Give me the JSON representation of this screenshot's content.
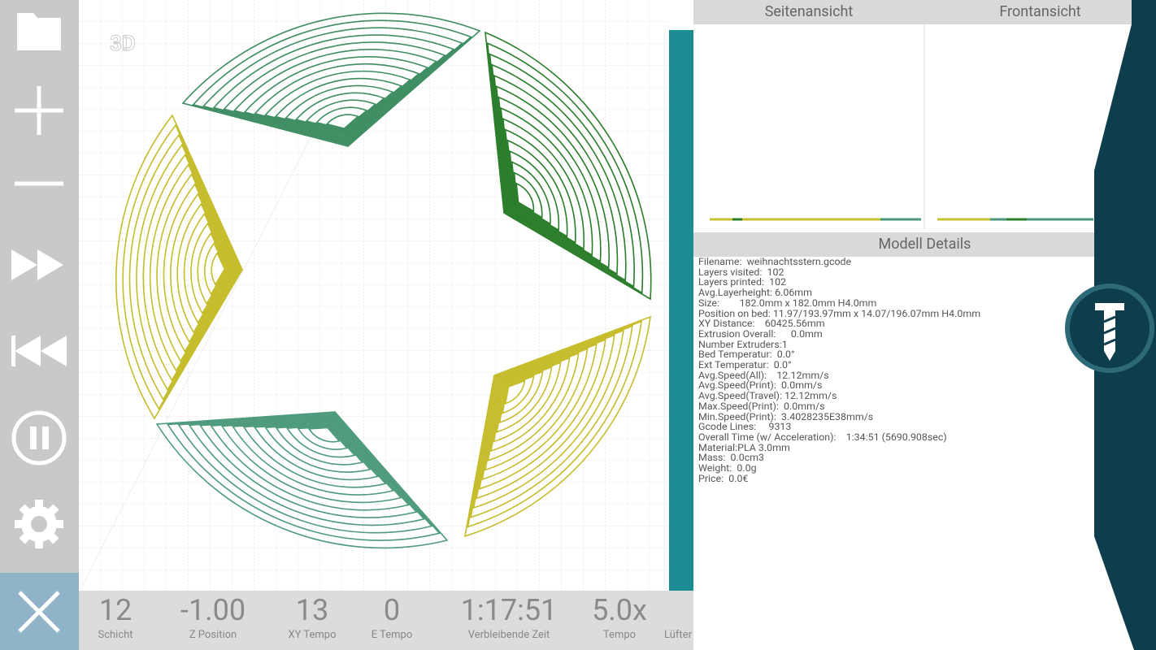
{
  "viewer": {
    "badge": "3D"
  },
  "views": {
    "side": "Seitenansicht",
    "front": "Frontansicht"
  },
  "details": {
    "title": "Modell Details",
    "lines": [
      "Filename:  weihnachtsstern.gcode",
      "Layers visited:  102",
      "Layers printed:  102",
      "Avg.Layerheight: 6.06mm",
      "Size:        182.0mm x 182.0mm H4.0mm",
      "Position on bed: 11.97/193.97mm x 14.07/196.07mm H4.0mm",
      "XY Distance:    60425.56mm",
      "Extrusion Overall:      0.0mm",
      "Number Extruders:1",
      "Bed Temperatur:  0.0°",
      "Ext Temperatur:  0.0°",
      "Avg.Speed(All):    12.12mm/s",
      "Avg.Speed(Print):  0.0mm/s",
      "Avg.Speed(Travel): 12.12mm/s",
      "Max.Speed(Print):  0.0mm/s",
      "Min.Speed(Print):  3.4028235E38mm/s",
      "Gcode Lines:     9313",
      "Overall Time (w/ Acceleration):    1:34:51 (5690.908sec)",
      "Material:PLA 3.0mm",
      "Mass:  0.0cm3",
      "Weight:  0.0g",
      "Price:  0.0€"
    ]
  },
  "status": [
    {
      "value": "12",
      "label": "Schicht"
    },
    {
      "value": "-1.00",
      "label": "Z Position"
    },
    {
      "value": "13",
      "label": "XY Tempo"
    },
    {
      "value": "0",
      "label": "E Tempo"
    },
    {
      "value": "1:17:51",
      "label": "Verbleibende Zeit"
    },
    {
      "value": "5.0x",
      "label": "Tempo"
    },
    {
      "label": "Lüfter"
    }
  ]
}
